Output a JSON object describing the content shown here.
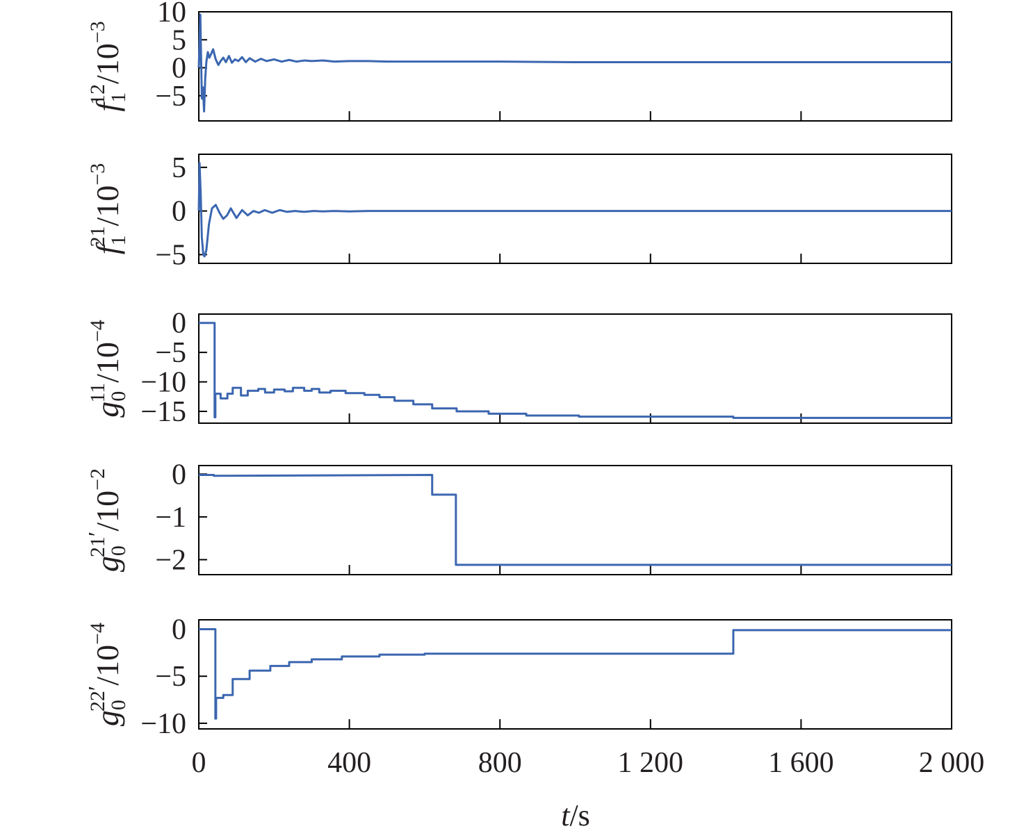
{
  "chart_data": [
    {
      "type": "line",
      "ylabel": {
        "sym": "f",
        "sup": "12",
        "sub": "1",
        "prime": "",
        "exp": "−3"
      },
      "ylim": [
        -9.5,
        10
      ],
      "yticks": [
        10,
        5,
        0,
        -5
      ],
      "ytick_labels": [
        "10",
        "5",
        "0",
        "−5"
      ],
      "color": "#3b66b0",
      "series": [
        {
          "x": [
            0,
            4,
            8,
            11,
            14,
            17,
            20,
            24,
            28,
            33,
            38,
            45,
            52,
            58,
            65,
            72,
            80,
            88,
            96,
            105,
            115,
            125,
            135,
            150,
            165,
            180,
            200,
            220,
            240,
            260,
            280,
            300,
            330,
            360,
            400,
            450,
            500,
            550,
            600,
            700,
            800,
            1000,
            1200,
            1400,
            1600,
            1800,
            2000
          ],
          "y": [
            0,
            9.5,
            -5.5,
            -3.5,
            -7.8,
            -2,
            1,
            2.8,
            1.8,
            2.5,
            3.3,
            1.5,
            0.5,
            1.2,
            1.8,
            1.0,
            2.1,
            0.9,
            1.5,
            1.2,
            1.9,
            1.0,
            1.7,
            1.1,
            1.6,
            1.2,
            1.5,
            1.1,
            1.4,
            1.1,
            1.3,
            1.2,
            1.3,
            1.1,
            1.2,
            1.2,
            1.1,
            1.1,
            1.1,
            1.1,
            1.1,
            1.0,
            1.0,
            1.0,
            1.0,
            1.0,
            1.0
          ]
        }
      ]
    },
    {
      "type": "line",
      "ylabel": {
        "sym": "f",
        "sup": "21",
        "sub": "1",
        "prime": "",
        "exp": "−3"
      },
      "ylim": [
        -6,
        6.5
      ],
      "yticks": [
        5,
        0,
        -5
      ],
      "ytick_labels": [
        "5",
        "0",
        "−5"
      ],
      "color": "#3b66b0",
      "series": [
        {
          "x": [
            0,
            2,
            5,
            8,
            12,
            15,
            20,
            27,
            35,
            45,
            55,
            65,
            75,
            85,
            100,
            115,
            130,
            145,
            160,
            175,
            195,
            215,
            235,
            255,
            280,
            305,
            330,
            360,
            400,
            450,
            500,
            600,
            700,
            800,
            1000,
            1200,
            1400,
            1600,
            1800,
            2000
          ],
          "y": [
            0,
            5.5,
            2,
            -3,
            -5,
            -5.2,
            -4.5,
            -1.5,
            0.3,
            0.7,
            -0.2,
            -0.9,
            -0.5,
            0.3,
            -0.8,
            0.1,
            -0.5,
            0.0,
            -0.2,
            0.1,
            -0.2,
            0.1,
            -0.1,
            0.0,
            -0.1,
            0.0,
            -0.05,
            0.0,
            -0.05,
            0.0,
            0.0,
            0.0,
            0.0,
            0.0,
            0.0,
            0.0,
            0.0,
            0.0,
            0.0,
            0.0
          ]
        }
      ]
    },
    {
      "type": "line",
      "ylabel": {
        "sym": "g",
        "sup": "11",
        "sub": "0",
        "prime": "",
        "exp": "−4"
      },
      "ylim": [
        -17,
        1.5
      ],
      "yticks": [
        0,
        -5,
        -10,
        -15
      ],
      "ytick_labels": [
        "0",
        "−5",
        "−10",
        "−15"
      ],
      "color": "#3b66b0",
      "series": [
        {
          "x": [
            0,
            42,
            42,
            44,
            44,
            58,
            58,
            76,
            76,
            90,
            90,
            112,
            112,
            130,
            130,
            158,
            158,
            176,
            176,
            200,
            200,
            228,
            228,
            250,
            250,
            280,
            280,
            300,
            300,
            320,
            320,
            350,
            350,
            390,
            390,
            440,
            440,
            480,
            480,
            520,
            520,
            570,
            570,
            620,
            620,
            685,
            685,
            770,
            770,
            870,
            870,
            1010,
            1010,
            1420,
            1420,
            2000
          ],
          "y": [
            0,
            0,
            -16,
            -16,
            -12,
            -12,
            -12.8,
            -12.8,
            -12,
            -12,
            -11,
            -11,
            -12.3,
            -12.3,
            -11.5,
            -11.5,
            -11.2,
            -11.2,
            -11.8,
            -11.8,
            -11.3,
            -11.3,
            -11.6,
            -11.6,
            -11,
            -11,
            -11.5,
            -11.5,
            -11.2,
            -11.2,
            -11.8,
            -11.8,
            -11.5,
            -11.5,
            -11.9,
            -11.9,
            -12.2,
            -12.2,
            -12.6,
            -12.6,
            -13.2,
            -13.2,
            -13.8,
            -13.8,
            -14.5,
            -14.5,
            -15,
            -15,
            -15.4,
            -15.4,
            -15.7,
            -15.7,
            -15.9,
            -15.9,
            -16.1,
            -16.1
          ]
        }
      ]
    },
    {
      "type": "line",
      "ylabel": {
        "sym": "g",
        "sup": "21",
        "sub": "0",
        "prime": "′",
        "exp": "−2"
      },
      "ylim": [
        -2.35,
        0.2
      ],
      "yticks": [
        0,
        -1,
        -2
      ],
      "ytick_labels": [
        "0",
        "−1",
        "−2"
      ],
      "color": "#3b66b0",
      "series": [
        {
          "x": [
            0,
            40,
            40,
            620,
            620,
            683,
            683,
            2000
          ],
          "y": [
            -0.02,
            -0.02,
            -0.04,
            -0.02,
            -0.48,
            -0.48,
            -2.12,
            -2.12
          ]
        }
      ]
    },
    {
      "type": "line",
      "ylabel": {
        "sym": "g",
        "sup": "22",
        "sub": "0",
        "prime": "′",
        "exp": "−4"
      },
      "ylim": [
        -10.6,
        1.0
      ],
      "yticks": [
        0,
        -5,
        -10
      ],
      "ytick_labels": [
        "0",
        "−5",
        "−10"
      ],
      "color": "#3b66b0",
      "series": [
        {
          "x": [
            0,
            44,
            44,
            46,
            46,
            65,
            65,
            90,
            90,
            135,
            135,
            190,
            190,
            240,
            240,
            300,
            300,
            380,
            380,
            480,
            480,
            600,
            600,
            1420,
            1420,
            2000
          ],
          "y": [
            0,
            0,
            -9.5,
            -9.5,
            -7.3,
            -7.3,
            -7,
            -7,
            -5.3,
            -5.3,
            -4.4,
            -4.4,
            -3.9,
            -3.9,
            -3.5,
            -3.5,
            -3.2,
            -3.2,
            -2.9,
            -2.9,
            -2.7,
            -2.7,
            -2.6,
            -2.6,
            -0.1,
            -0.1
          ]
        }
      ]
    }
  ],
  "xaxis": {
    "xlim": [
      0,
      2000
    ],
    "xticks": [
      0,
      400,
      800,
      1200,
      1600,
      2000
    ],
    "xtick_labels": [
      "0",
      "400",
      "800",
      "1 200",
      "1 600",
      "2 000"
    ],
    "label_var": "t",
    "label_unit": "/s"
  }
}
